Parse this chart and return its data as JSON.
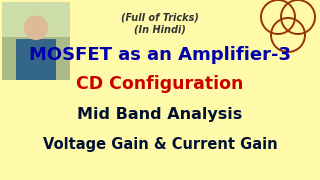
{
  "background_color": "#FFFAAA",
  "top_text_1": "(Full of Tricks)",
  "top_text_2": "(In Hindi)",
  "title_line1": "MOSFET as an Amplifier-3",
  "title_line1_color": "#0000AA",
  "line2": "CD Configuration",
  "line2_color": "#CC0000",
  "line3": "Mid Band Analysis",
  "line3_color": "#001133",
  "line4": "Voltage Gain & Current Gain",
  "line4_color": "#001133",
  "top_text_color": "#333333",
  "circle_color": "#993300",
  "photo_bg_color": "#8899AA",
  "photo_face_color": "#DDBB99",
  "photo_shirt_color": "#336688"
}
